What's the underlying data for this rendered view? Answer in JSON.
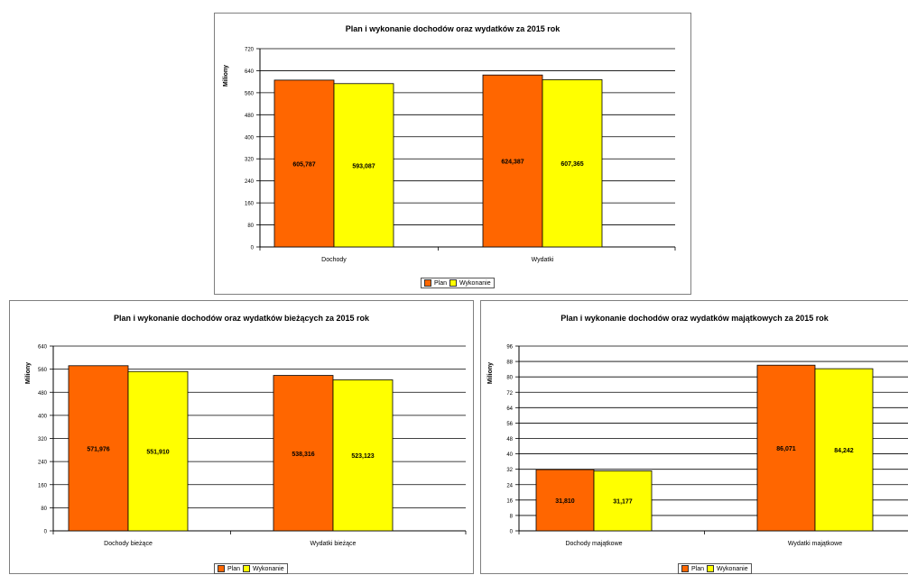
{
  "chart_data": [
    {
      "type": "bar",
      "title": "Plan i wykonanie dochodów oraz wydatków za 2015 rok",
      "ylabel": "Miliony",
      "xlabel": "",
      "categories": [
        "Dochody",
        "Wydatki"
      ],
      "series": [
        {
          "name": "Plan",
          "values": [
            605.787,
            624.387
          ],
          "labels": [
            "605,787",
            "624,387"
          ]
        },
        {
          "name": "Wykonanie",
          "values": [
            593.087,
            607.365
          ],
          "labels": [
            "593,087",
            "607,365"
          ]
        }
      ],
      "ylim": [
        0,
        720
      ],
      "yticks": [
        "0",
        "80",
        "160",
        "240",
        "320",
        "400",
        "480",
        "560",
        "640",
        "720"
      ],
      "grid": true,
      "legend": "bottom"
    },
    {
      "type": "bar",
      "title": "Plan i wykonanie dochodów oraz wydatków bieżących za 2015 rok",
      "ylabel": "Miliony",
      "xlabel": "",
      "categories": [
        "Dochody bieżące",
        "Wydatki bieżące"
      ],
      "series": [
        {
          "name": "Plan",
          "values": [
            571.976,
            538.316
          ],
          "labels": [
            "571,976",
            "538,316"
          ]
        },
        {
          "name": "Wykonanie",
          "values": [
            551.91,
            523.123
          ],
          "labels": [
            "551,910",
            "523,123"
          ]
        }
      ],
      "ylim": [
        0,
        640
      ],
      "yticks": [
        "0",
        "80",
        "160",
        "240",
        "320",
        "400",
        "480",
        "560",
        "640"
      ],
      "grid": true,
      "legend": "bottom"
    },
    {
      "type": "bar",
      "title": "Plan i wykonanie dochodów oraz wydatków majątkowych za 2015 rok",
      "ylabel": "Miliony",
      "xlabel": "",
      "categories": [
        "Dochody majątkowe",
        "Wydatki majątkowe"
      ],
      "series": [
        {
          "name": "Plan",
          "values": [
            31.81,
            86.071
          ],
          "labels": [
            "31,810",
            "86,071"
          ]
        },
        {
          "name": "Wykonanie",
          "values": [
            31.177,
            84.242
          ],
          "labels": [
            "31,177",
            "84,242"
          ]
        }
      ],
      "ylim": [
        0,
        96
      ],
      "yticks": [
        "0",
        "8",
        "16",
        "24",
        "32",
        "40",
        "48",
        "56",
        "64",
        "72",
        "80",
        "88",
        "96"
      ],
      "grid": true,
      "legend": "bottom"
    }
  ],
  "colors": {
    "plan": "#ff6600",
    "wykonanie": "#ffff00",
    "grid": "#000000",
    "bar_border": "#000000"
  }
}
